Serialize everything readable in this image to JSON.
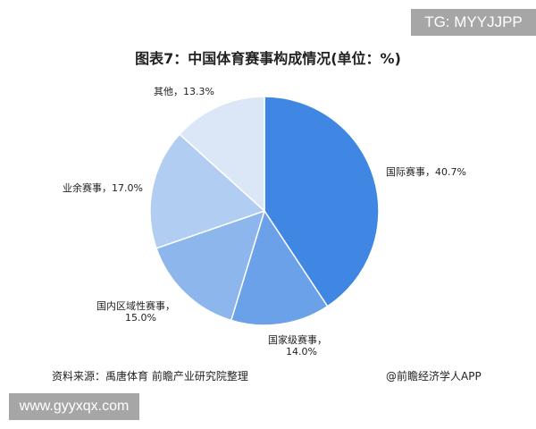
{
  "watermark_top": "TG: MYYJJPP",
  "watermark_bottom": "www.gyyxqx.com",
  "chart_data": {
    "type": "pie",
    "title": "图表7：中国体育赛事构成情况(单位：%)",
    "unit": "%",
    "slices": [
      {
        "label": "国际赛事",
        "value": 40.7,
        "display": "国际赛事，40.7%",
        "color": "#3f87e2"
      },
      {
        "label": "国家级赛事",
        "value": 14.0,
        "display_line1": "国家级赛事，",
        "display_line2": "14.0%",
        "color": "#6ba1e8"
      },
      {
        "label": "国内区域性赛事",
        "value": 15.0,
        "display_line1": "国内区域性赛事，",
        "display_line2": "15.0%",
        "color": "#8cb6ec"
      },
      {
        "label": "业余赛事",
        "value": 17.0,
        "display": "业余赛事，17.0%",
        "color": "#b1cef2"
      },
      {
        "label": "其他",
        "value": 13.3,
        "display": "其他，13.3%",
        "color": "#dbe7f7"
      }
    ],
    "start": "top",
    "direction": "clockwise"
  },
  "source": "资料来源：禹唐体育 前瞻产业研究院整理",
  "credit": "@前瞻经济学人APP"
}
